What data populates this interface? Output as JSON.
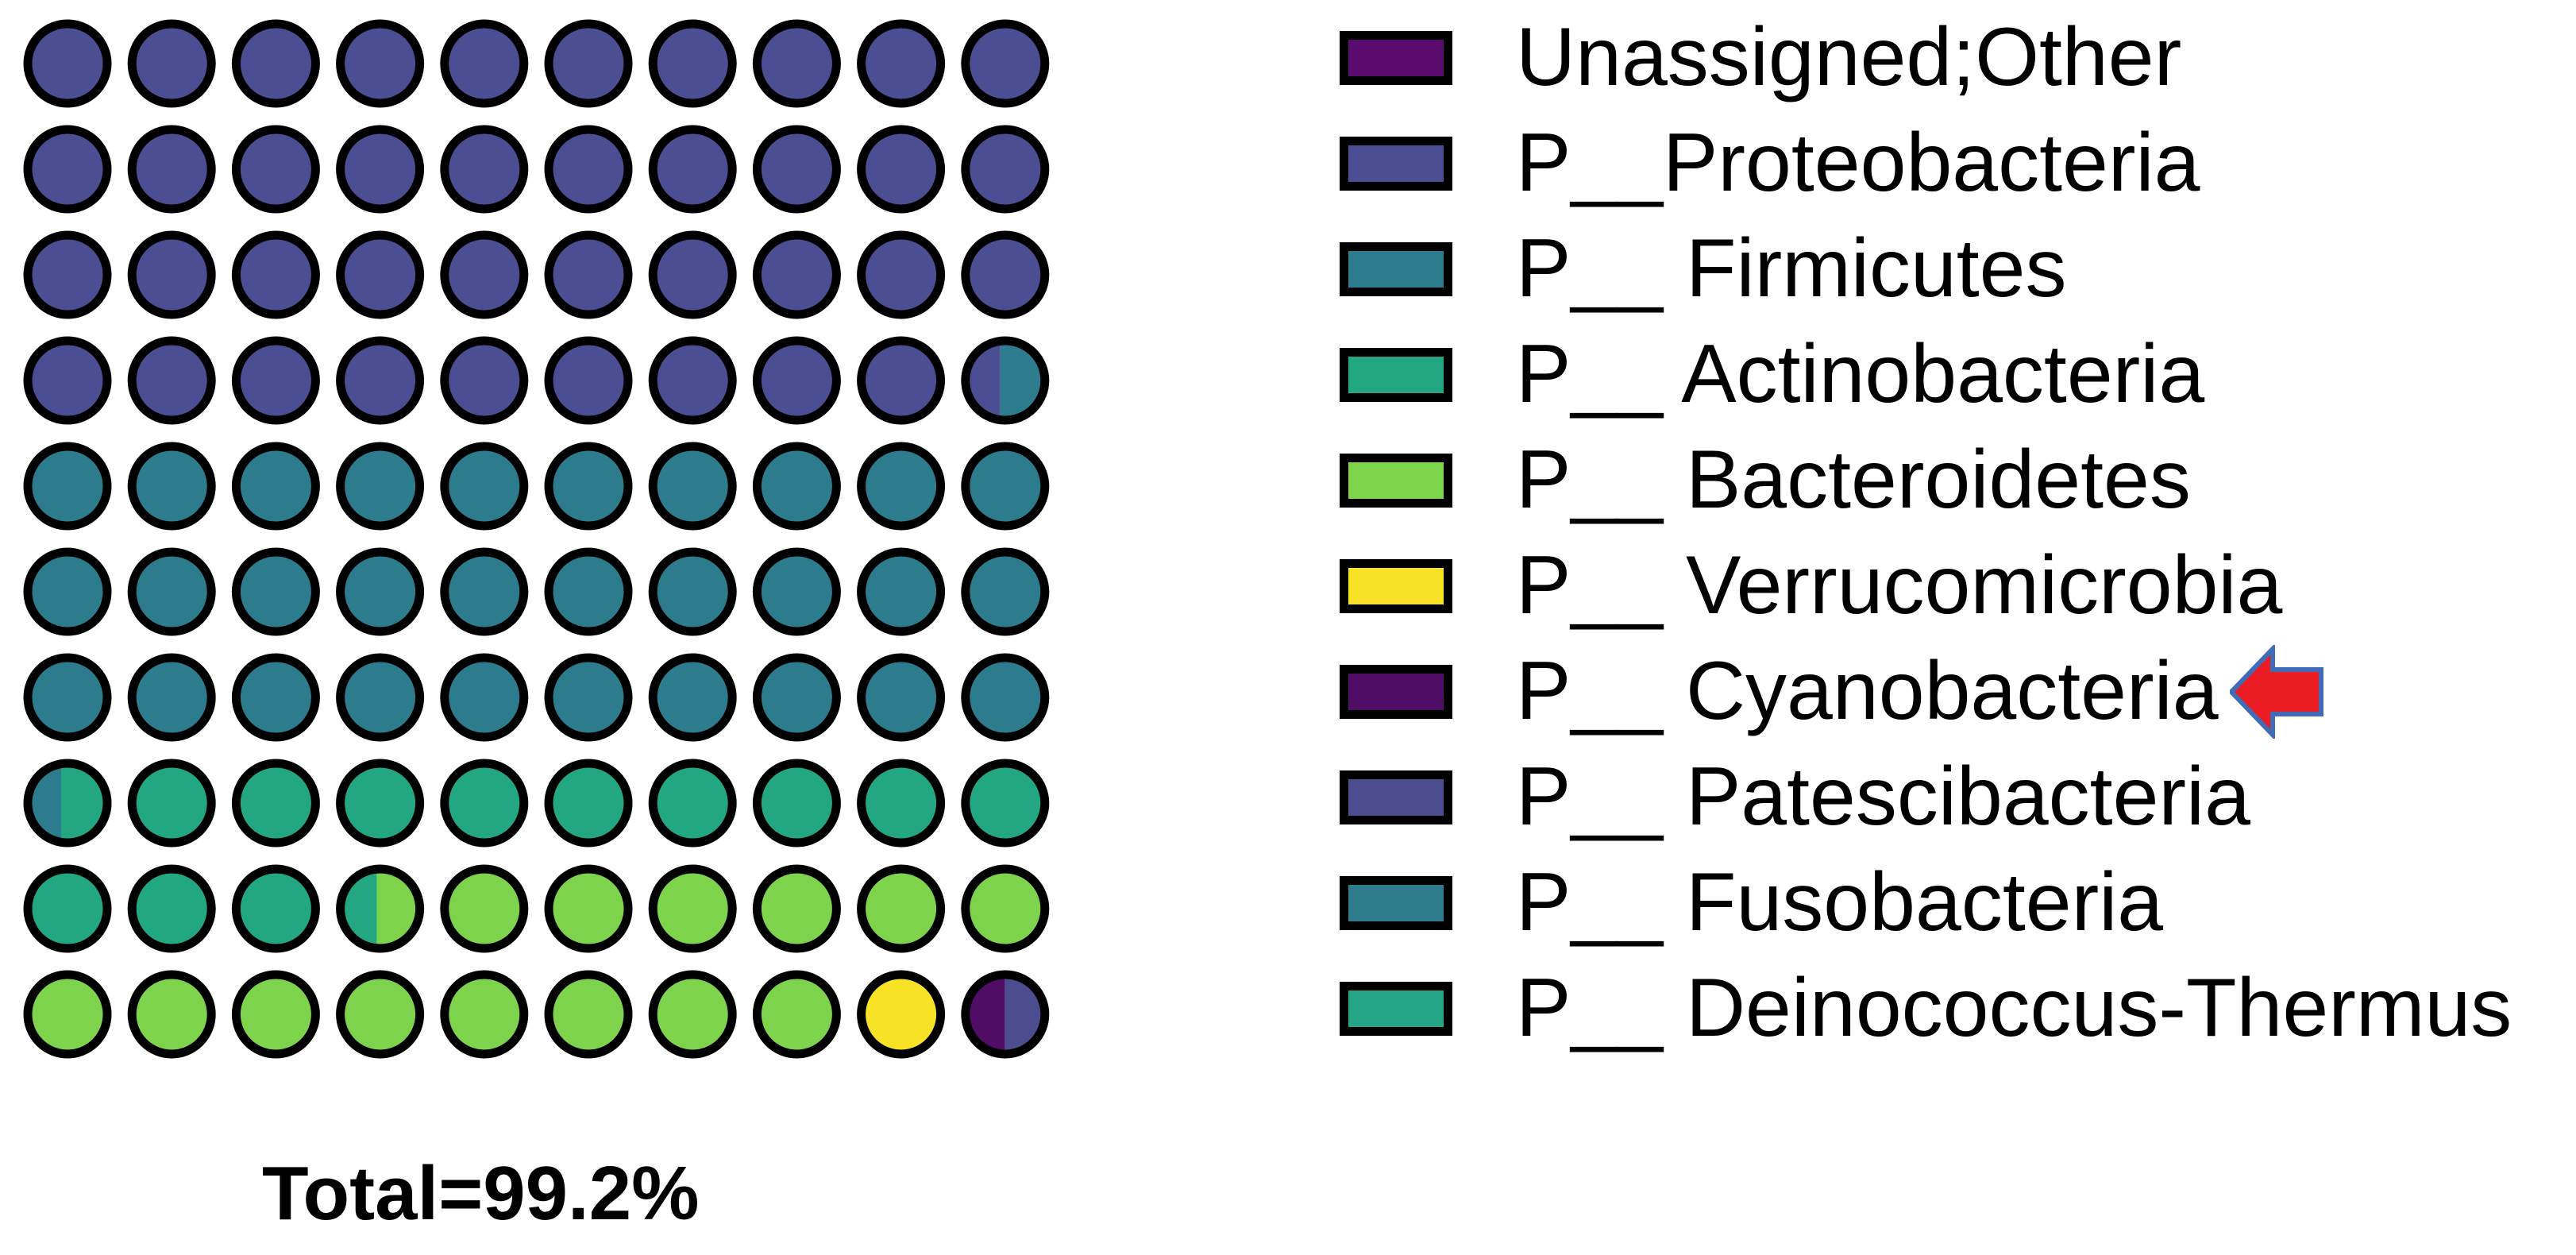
{
  "figure": {
    "total_label": "Total=99.2%"
  },
  "colors": {
    "unassigned_other": "#5a0c6e",
    "proteobacteria": "#4b4e92",
    "firmicutes": "#2c7c8e",
    "actinobacteria": "#23a783",
    "bacteroidetes": "#7ed34c",
    "verrucomicrobia": "#f7e225",
    "cyanobacteria": "#500d66",
    "patescibacteria": "#4b4d8f",
    "fusobacteria": "#2e7b8c",
    "deinococcus_thermus": "#24a585",
    "circle_outline": "#000000",
    "arrow_fill": "#ec1c24",
    "arrow_outline": "#3f6cb4"
  },
  "legend": {
    "items": [
      {
        "label": "Unassigned;Other",
        "color_key": "unassigned_other"
      },
      {
        "label": "P__Proteobacteria",
        "color_key": "proteobacteria"
      },
      {
        "label": "P__ Firmicutes",
        "color_key": "firmicutes"
      },
      {
        "label": "P__ Actinobacteria",
        "color_key": "actinobacteria"
      },
      {
        "label": "P__ Bacteroidetes",
        "color_key": "bacteroidetes"
      },
      {
        "label": "P__ Verrucomicrobia",
        "color_key": "verrucomicrobia"
      },
      {
        "label": "P__ Cyanobacteria",
        "color_key": "cyanobacteria",
        "arrow": true
      },
      {
        "label": "P__ Patescibacteria",
        "color_key": "patescibacteria"
      },
      {
        "label": "P__ Fusobacteria",
        "color_key": "fusobacteria"
      },
      {
        "label": "P__ Deinococcus-Thermus",
        "color_key": "deinococcus_thermus"
      }
    ]
  },
  "chart_data": {
    "type": "waffle",
    "title": "",
    "total_label": "Total=99.2%",
    "total_value_percent": 99.2,
    "grid": {
      "rows": 10,
      "cols": 10,
      "unit_percent": 1.0
    },
    "legend_position": "right",
    "series": [
      {
        "name": "P__Proteobacteria",
        "cells": 39.4,
        "percent_estimated": 39.4
      },
      {
        "name": "P__ Firmicutes",
        "cells": 31.0,
        "percent_estimated": 31.0
      },
      {
        "name": "P__ Actinobacteria",
        "cells": 13.0,
        "percent_estimated": 13.0
      },
      {
        "name": "P__ Bacteroidetes",
        "cells": 14.5,
        "percent_estimated": 14.5
      },
      {
        "name": "P__ Verrucomicrobia",
        "cells": 1.0,
        "percent_estimated": 1.0
      },
      {
        "name": "P__ Cyanobacteria",
        "cells": 0.5,
        "percent_estimated": 0.5
      },
      {
        "name": "P__ Patescibacteria",
        "cells": 0.5,
        "percent_estimated": 0.5
      }
    ],
    "cells": [
      [
        "proteobacteria",
        "proteobacteria",
        "proteobacteria",
        "proteobacteria",
        "proteobacteria",
        "proteobacteria",
        "proteobacteria",
        "proteobacteria",
        "proteobacteria",
        "proteobacteria"
      ],
      [
        "proteobacteria",
        "proteobacteria",
        "proteobacteria",
        "proteobacteria",
        "proteobacteria",
        "proteobacteria",
        "proteobacteria",
        "proteobacteria",
        "proteobacteria",
        "proteobacteria"
      ],
      [
        "proteobacteria",
        "proteobacteria",
        "proteobacteria",
        "proteobacteria",
        "proteobacteria",
        "proteobacteria",
        "proteobacteria",
        "proteobacteria",
        "proteobacteria",
        "proteobacteria"
      ],
      [
        "proteobacteria",
        "proteobacteria",
        "proteobacteria",
        "proteobacteria",
        "proteobacteria",
        "proteobacteria",
        "proteobacteria",
        "proteobacteria",
        "proteobacteria",
        {
          "left": "proteobacteria",
          "right": "firmicutes",
          "left_fraction": 0.44
        }
      ],
      [
        "firmicutes",
        "firmicutes",
        "firmicutes",
        "firmicutes",
        "firmicutes",
        "firmicutes",
        "firmicutes",
        "firmicutes",
        "firmicutes",
        "firmicutes"
      ],
      [
        "firmicutes",
        "firmicutes",
        "firmicutes",
        "firmicutes",
        "firmicutes",
        "firmicutes",
        "firmicutes",
        "firmicutes",
        "firmicutes",
        "firmicutes"
      ],
      [
        "firmicutes",
        "firmicutes",
        "firmicutes",
        "firmicutes",
        "firmicutes",
        "firmicutes",
        "firmicutes",
        "firmicutes",
        "firmicutes",
        "firmicutes"
      ],
      [
        {
          "left": "firmicutes",
          "right": "actinobacteria",
          "left_fraction": 0.42
        },
        "actinobacteria",
        "actinobacteria",
        "actinobacteria",
        "actinobacteria",
        "actinobacteria",
        "actinobacteria",
        "actinobacteria",
        "actinobacteria",
        "actinobacteria"
      ],
      [
        "actinobacteria",
        "actinobacteria",
        "actinobacteria",
        {
          "left": "actinobacteria",
          "right": "bacteroidetes",
          "left_fraction": 0.46
        },
        "bacteroidetes",
        "bacteroidetes",
        "bacteroidetes",
        "bacteroidetes",
        "bacteroidetes",
        "bacteroidetes"
      ],
      [
        "bacteroidetes",
        "bacteroidetes",
        "bacteroidetes",
        "bacteroidetes",
        "bacteroidetes",
        "bacteroidetes",
        "bacteroidetes",
        "bacteroidetes",
        "verrucomicrobia",
        {
          "left": "cyanobacteria",
          "right": "patescibacteria",
          "left_fraction": 0.5
        }
      ]
    ]
  }
}
